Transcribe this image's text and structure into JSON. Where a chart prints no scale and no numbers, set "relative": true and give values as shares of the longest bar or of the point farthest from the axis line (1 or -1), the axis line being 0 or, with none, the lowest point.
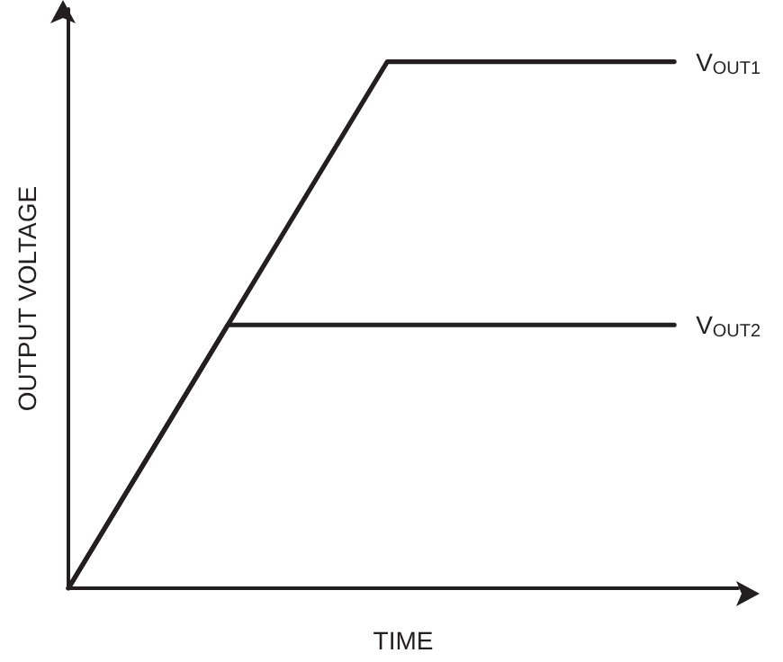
{
  "chart_data": {
    "type": "line",
    "relative": true,
    "xlabel": "TIME",
    "ylabel": "OUTPUT VOLTAGE",
    "grid": false,
    "legend": false,
    "marker": "none",
    "line_style": "solid",
    "categories": [
      null,
      null,
      null,
      null,
      null,
      null,
      null,
      null,
      null,
      null,
      null,
      null,
      null,
      null,
      null,
      null,
      null,
      null,
      null,
      null,
      null,
      null
    ],
    "series": [
      {
        "name": "V$_{OUT1}$",
        "color": "#231f20",
        "values": [
          0,
          null,
          null,
          null,
          null,
          null,
          null,
          null,
          null,
          null,
          1,
          null,
          null,
          null,
          null,
          null,
          null,
          null,
          null,
          1,
          null,
          null
        ]
      },
      {
        "name": "V$_{OUT2}$",
        "color": "#231f20",
        "values": [
          0,
          null,
          null,
          null,
          null,
          0.5,
          null,
          null,
          null,
          null,
          null,
          null,
          null,
          null,
          null,
          null,
          null,
          null,
          null,
          0.5,
          null,
          null
        ]
      }
    ]
  }
}
